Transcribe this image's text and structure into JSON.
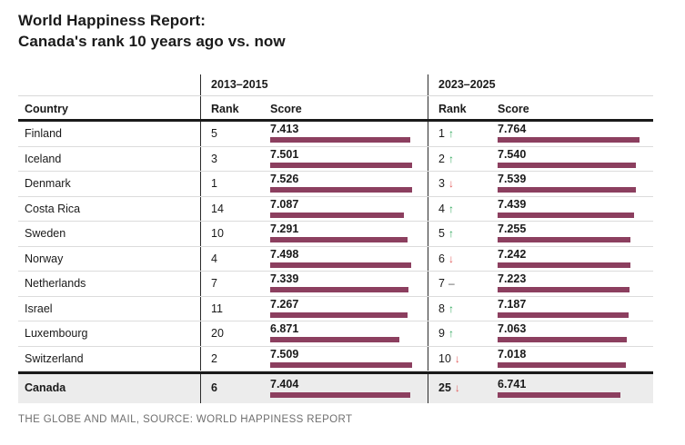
{
  "title": {
    "line1": "World Happiness Report:",
    "line2": "Canada's rank 10 years ago vs. now"
  },
  "source": "THE GLOBE AND MAIL, SOURCE: WORLD HAPPINESS REPORT",
  "colors": {
    "bar": "#8c3f5f",
    "trend_up": "#30a85c",
    "trend_down": "#e15b5b",
    "trend_same": "#555555",
    "highlight_row_bg": "#ececec"
  },
  "table": {
    "group_headers": {
      "period1": "2013–2015",
      "period2": "2023–2025"
    },
    "columns": {
      "country": "Country",
      "rank": "Rank",
      "score": "Score"
    },
    "trend_glyphs": {
      "up": "↑",
      "down": "↓",
      "same": "–"
    },
    "rows": [
      {
        "country": "Finland",
        "rank_2013": "5",
        "score_2013": "7.413",
        "rank_2023": "1",
        "trend": "up",
        "score_2023": "7.764",
        "highlight": false
      },
      {
        "country": "Iceland",
        "rank_2013": "3",
        "score_2013": "7.501",
        "rank_2023": "2",
        "trend": "up",
        "score_2023": "7.540",
        "highlight": false
      },
      {
        "country": "Denmark",
        "rank_2013": "1",
        "score_2013": "7.526",
        "rank_2023": "3",
        "trend": "down",
        "score_2023": "7.539",
        "highlight": false
      },
      {
        "country": "Costa Rica",
        "rank_2013": "14",
        "score_2013": "7.087",
        "rank_2023": "4",
        "trend": "up",
        "score_2023": "7.439",
        "highlight": false
      },
      {
        "country": "Sweden",
        "rank_2013": "10",
        "score_2013": "7.291",
        "rank_2023": "5",
        "trend": "up",
        "score_2023": "7.255",
        "highlight": false
      },
      {
        "country": "Norway",
        "rank_2013": "4",
        "score_2013": "7.498",
        "rank_2023": "6",
        "trend": "down",
        "score_2023": "7.242",
        "highlight": false
      },
      {
        "country": "Netherlands",
        "rank_2013": "7",
        "score_2013": "7.339",
        "rank_2023": "7",
        "trend": "same",
        "score_2023": "7.223",
        "highlight": false
      },
      {
        "country": "Israel",
        "rank_2013": "11",
        "score_2013": "7.267",
        "rank_2023": "8",
        "trend": "up",
        "score_2023": "7.187",
        "highlight": false
      },
      {
        "country": "Luxembourg",
        "rank_2013": "20",
        "score_2013": "6.871",
        "rank_2023": "9",
        "trend": "up",
        "score_2023": "7.063",
        "highlight": false
      },
      {
        "country": "Switzerland",
        "rank_2013": "2",
        "score_2013": "7.509",
        "rank_2023": "10",
        "trend": "down",
        "score_2023": "7.018",
        "highlight": false
      },
      {
        "country": "Canada",
        "rank_2013": "6",
        "score_2013": "7.404",
        "rank_2023": "25",
        "trend": "down",
        "score_2023": "6.741",
        "highlight": true
      }
    ]
  },
  "chart_data": {
    "type": "table",
    "title": "World Happiness Report: Canada's rank 10 years ago vs. now",
    "categories": [
      "Finland",
      "Iceland",
      "Denmark",
      "Costa Rica",
      "Sweden",
      "Norway",
      "Netherlands",
      "Israel",
      "Luxembourg",
      "Switzerland",
      "Canada"
    ],
    "series": [
      {
        "name": "2013–2015 Rank",
        "values": [
          5,
          3,
          1,
          14,
          10,
          4,
          7,
          11,
          20,
          2,
          6
        ]
      },
      {
        "name": "2013–2015 Score",
        "values": [
          7.413,
          7.501,
          7.526,
          7.087,
          7.291,
          7.498,
          7.339,
          7.267,
          6.871,
          7.509,
          7.404
        ]
      },
      {
        "name": "2023–2025 Rank",
        "values": [
          1,
          2,
          3,
          4,
          5,
          6,
          7,
          8,
          9,
          10,
          25
        ]
      },
      {
        "name": "2023–2025 Score",
        "values": [
          7.764,
          7.54,
          7.539,
          7.439,
          7.255,
          7.242,
          7.223,
          7.187,
          7.063,
          7.018,
          6.741
        ]
      },
      {
        "name": "Rank change direction",
        "values": [
          "up",
          "up",
          "down",
          "up",
          "up",
          "down",
          "same",
          "up",
          "up",
          "down",
          "down"
        ]
      }
    ],
    "notes": "Score bars drawn from 0, scaled so each period column's maximum score spans the full 156px bar track. Canada row highlighted.",
    "source": "THE GLOBE AND MAIL, SOURCE: WORLD HAPPINESS REPORT"
  }
}
